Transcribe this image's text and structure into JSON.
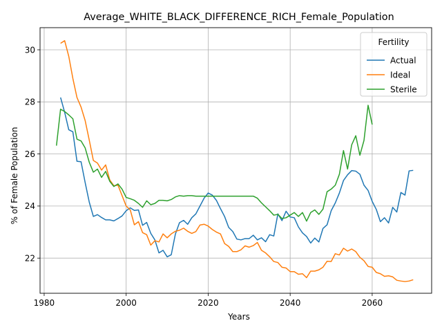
{
  "chart_data": {
    "type": "line",
    "title": "Average_WHITE_BLACK_DIFFERENCE_RICH_Female_Population",
    "xlabel": "Years",
    "ylabel": "% of Female Population",
    "xlim": [
      1979,
      2074.5
    ],
    "ylim": [
      20.65,
      30.85
    ],
    "xticks": [
      1980,
      2000,
      2020,
      2040,
      2060
    ],
    "yticks": [
      22,
      24,
      26,
      28,
      30
    ],
    "grid": true,
    "legend": {
      "title": "Fertility",
      "position": "top-right"
    },
    "series": [
      {
        "name": "Actual",
        "color": "#1f77b4",
        "x": [
          1984,
          1985,
          1986,
          1987,
          1988,
          1989,
          1990,
          1991,
          1992,
          1993,
          1994,
          1995,
          1996,
          1997,
          1998,
          1999,
          2000,
          2001,
          2002,
          2003,
          2004,
          2005,
          2006,
          2007,
          2008,
          2009,
          2010,
          2011,
          2012,
          2013,
          2014,
          2015,
          2016,
          2017,
          2018,
          2019,
          2020,
          2021,
          2022,
          2023,
          2024,
          2025,
          2026,
          2027,
          2028,
          2029,
          2030,
          2031,
          2032,
          2033,
          2034,
          2035,
          2036,
          2037,
          2038,
          2039,
          2040,
          2041,
          2042,
          2043,
          2044,
          2045,
          2046,
          2047,
          2048,
          2049,
          2050,
          2051,
          2052,
          2053,
          2054,
          2055,
          2056,
          2057,
          2058,
          2059,
          2060,
          2061,
          2062,
          2063,
          2064,
          2065,
          2066,
          2067,
          2068,
          2069,
          2070
        ],
        "y": [
          28.17,
          27.6,
          26.93,
          26.85,
          25.72,
          25.7,
          24.9,
          24.15,
          23.6,
          23.67,
          23.56,
          23.47,
          23.47,
          23.43,
          23.52,
          23.62,
          23.82,
          23.93,
          23.83,
          23.85,
          23.26,
          23.37,
          22.95,
          22.7,
          22.2,
          22.3,
          22.05,
          22.13,
          22.92,
          23.36,
          23.45,
          23.3,
          23.55,
          23.7,
          24.0,
          24.3,
          24.5,
          24.42,
          24.22,
          23.9,
          23.6,
          23.18,
          23.02,
          22.73,
          22.7,
          22.75,
          22.75,
          22.88,
          22.7,
          22.78,
          22.63,
          22.9,
          22.85,
          23.7,
          23.44,
          23.8,
          23.58,
          23.55,
          23.2,
          22.97,
          22.83,
          22.58,
          22.77,
          22.62,
          23.14,
          23.28,
          23.82,
          24.12,
          24.5,
          24.98,
          25.2,
          25.36,
          25.34,
          25.22,
          24.8,
          24.6,
          24.18,
          23.87,
          23.4,
          23.55,
          23.35,
          23.95,
          23.77,
          24.52,
          24.42,
          25.35,
          25.37
        ]
      },
      {
        "name": "Ideal",
        "color": "#ff7f0e",
        "x": [
          1984,
          1985,
          1986,
          1987,
          1988,
          1989,
          1990,
          1991,
          1992,
          1993,
          1994,
          1995,
          1996,
          1997,
          1998,
          1999,
          2000,
          2001,
          2002,
          2003,
          2004,
          2005,
          2006,
          2007,
          2008,
          2009,
          2010,
          2011,
          2012,
          2013,
          2014,
          2015,
          2016,
          2017,
          2018,
          2019,
          2020,
          2021,
          2022,
          2023,
          2024,
          2025,
          2026,
          2027,
          2028,
          2029,
          2030,
          2031,
          2032,
          2033,
          2034,
          2035,
          2036,
          2037,
          2038,
          2039,
          2040,
          2041,
          2042,
          2043,
          2044,
          2045,
          2046,
          2047,
          2048,
          2049,
          2050,
          2051,
          2052,
          2053,
          2054,
          2055,
          2056,
          2057,
          2058,
          2059,
          2060,
          2061,
          2062,
          2063,
          2064,
          2065,
          2066,
          2067,
          2068,
          2069,
          2070
        ],
        "y": [
          30.25,
          30.35,
          29.75,
          28.9,
          28.17,
          27.8,
          27.28,
          26.53,
          25.75,
          25.65,
          25.38,
          25.58,
          25.0,
          24.78,
          24.8,
          24.4,
          24.0,
          23.85,
          23.28,
          23.4,
          22.98,
          22.9,
          22.5,
          22.67,
          22.62,
          22.93,
          22.78,
          22.93,
          23.03,
          23.07,
          23.15,
          23.03,
          22.95,
          23.02,
          23.27,
          23.3,
          23.23,
          23.1,
          23.0,
          22.93,
          22.56,
          22.45,
          22.25,
          22.25,
          22.32,
          22.47,
          22.42,
          22.48,
          22.6,
          22.3,
          22.2,
          22.05,
          21.87,
          21.83,
          21.65,
          21.62,
          21.48,
          21.48,
          21.38,
          21.4,
          21.25,
          21.5,
          21.5,
          21.55,
          21.65,
          21.88,
          21.87,
          22.17,
          22.12,
          22.38,
          22.27,
          22.35,
          22.25,
          22.03,
          21.9,
          21.68,
          21.65,
          21.45,
          21.4,
          21.3,
          21.32,
          21.28,
          21.15,
          21.12,
          21.1,
          21.12,
          21.17
        ]
      },
      {
        "name": "Sterile",
        "color": "#2ca02c",
        "x": [
          1983,
          1984,
          1985,
          1986,
          1987,
          1988,
          1989,
          1990,
          1991,
          1992,
          1993,
          1994,
          1995,
          1996,
          1997,
          1998,
          1999,
          2000,
          2001,
          2002,
          2003,
          2004,
          2005,
          2006,
          2007,
          2008,
          2009,
          2010,
          2011,
          2012,
          2013,
          2014,
          2015,
          2016,
          2017,
          2018,
          2019,
          2020,
          2021,
          2022,
          2023,
          2024,
          2025,
          2026,
          2027,
          2028,
          2029,
          2030,
          2031,
          2032,
          2033,
          2034,
          2035,
          2036,
          2037,
          2038,
          2039,
          2040,
          2041,
          2042,
          2043,
          2044,
          2045,
          2046,
          2047,
          2048,
          2049,
          2050,
          2051,
          2052,
          2053,
          2054,
          2055,
          2056,
          2057,
          2058,
          2059,
          2060
        ],
        "y": [
          26.32,
          27.72,
          27.63,
          27.5,
          27.35,
          26.57,
          26.5,
          26.23,
          25.68,
          25.3,
          25.42,
          25.1,
          25.33,
          24.95,
          24.75,
          24.85,
          24.65,
          24.33,
          24.28,
          24.22,
          24.1,
          23.95,
          24.2,
          24.05,
          24.1,
          24.22,
          24.22,
          24.2,
          24.25,
          24.35,
          24.4,
          24.38,
          24.4,
          24.4,
          24.38,
          24.38,
          24.38,
          24.38,
          24.38,
          24.38,
          24.38,
          24.38,
          24.38,
          24.38,
          24.38,
          24.38,
          24.38,
          24.38,
          24.38,
          24.3,
          24.12,
          23.97,
          23.82,
          23.65,
          23.68,
          23.52,
          23.55,
          23.65,
          23.75,
          23.6,
          23.75,
          23.42,
          23.75,
          23.85,
          23.68,
          23.88,
          24.55,
          24.65,
          24.8,
          25.22,
          26.13,
          25.42,
          26.35,
          26.7,
          25.95,
          26.52,
          27.87,
          27.13
        ]
      }
    ]
  }
}
